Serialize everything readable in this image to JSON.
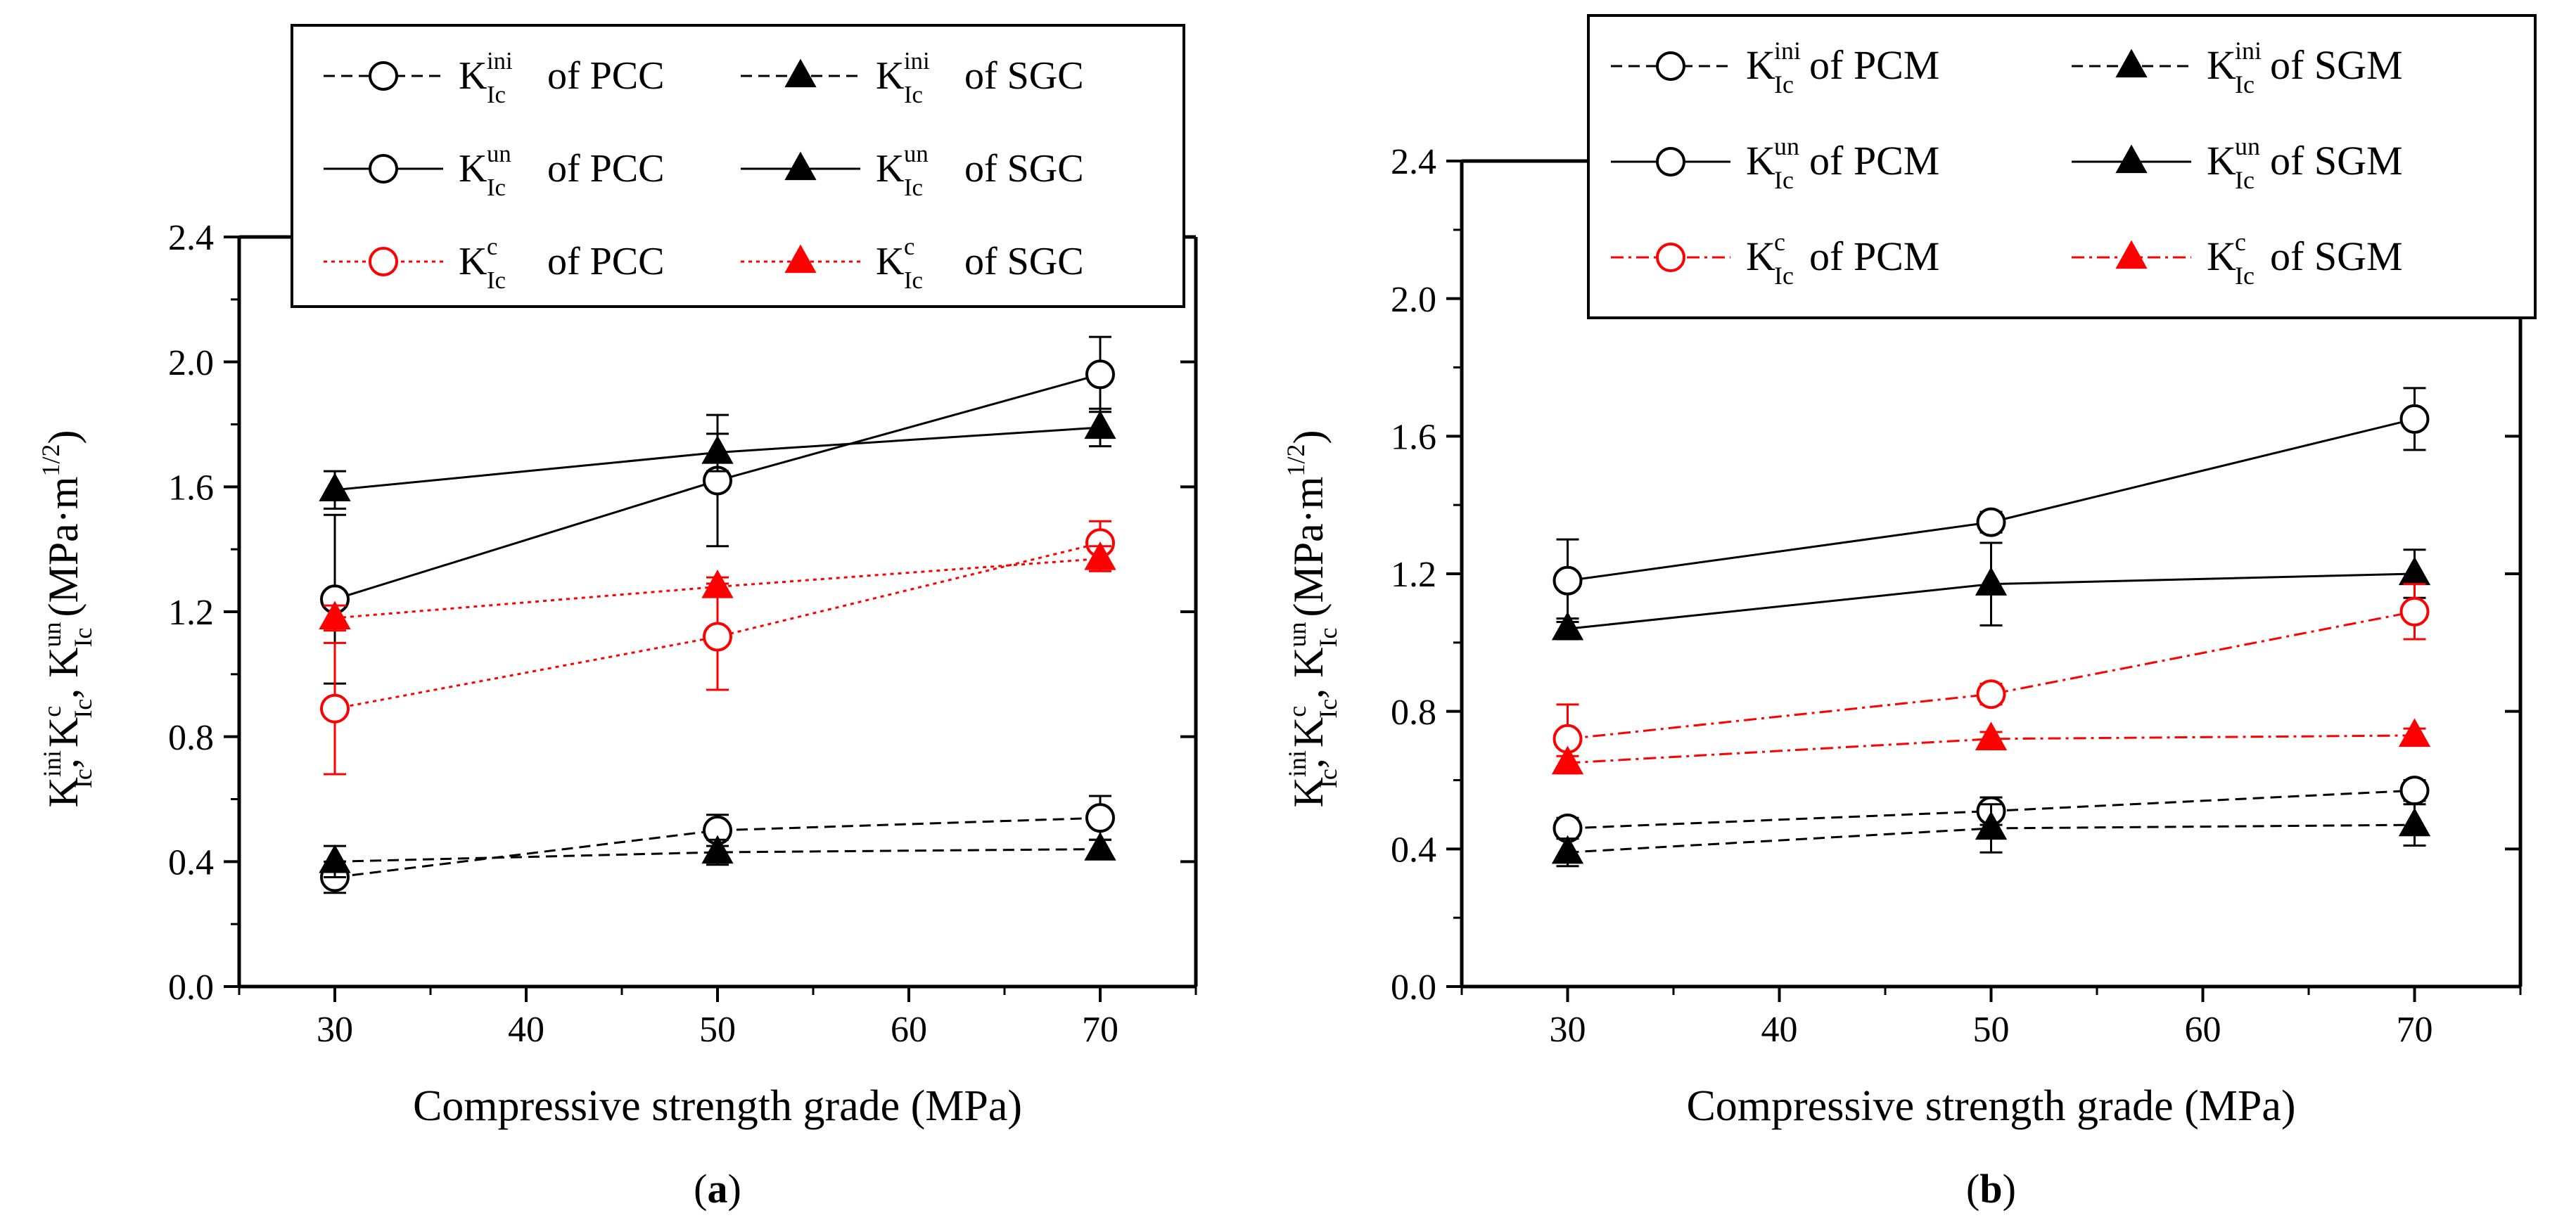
{
  "chart_data": [
    {
      "type": "line",
      "panel_label": "(a)",
      "panel_letter": "a",
      "xlabel": "Compressive strength grade (MPa)",
      "ylabel_main": "K",
      "ylabel_units": "(MPa·m",
      "ylabel_exp": "1/2",
      "ylabel_close": ")",
      "xlim": [
        25,
        75
      ],
      "ylim": [
        0.0,
        2.4
      ],
      "xticks": [
        30,
        40,
        50,
        60,
        70
      ],
      "yticks": [
        0.0,
        0.4,
        0.8,
        1.2,
        1.6,
        2.0,
        2.4
      ],
      "ytick_labels": [
        "0.0",
        "0.4",
        "0.8",
        "1.2",
        "1.6",
        "2.0",
        "2.4"
      ],
      "x": [
        30,
        50,
        70
      ],
      "series": [
        {
          "name": "K_Ic^ini of PCC",
          "base": "K",
          "sup": "ini",
          "sub": "Ic",
          "suffix": "of PCC",
          "marker": "open-circle",
          "line": "dash",
          "color": "#000000",
          "values": [
            0.35,
            0.5,
            0.54
          ],
          "errors": [
            0.05,
            0.05,
            0.07
          ]
        },
        {
          "name": "K_Ic^ini of SGC",
          "base": "K",
          "sup": "ini",
          "sub": "Ic",
          "suffix": "of SGC",
          "marker": "filled-triangle",
          "line": "dash",
          "color": "#000000",
          "values": [
            0.4,
            0.43,
            0.44
          ],
          "errors": [
            0.05,
            0.04,
            0.03
          ]
        },
        {
          "name": "K_Ic^un of PCC",
          "base": "K",
          "sup": "un",
          "sub": "Ic",
          "suffix": "of PCC",
          "marker": "open-circle",
          "line": "solid",
          "color": "#000000",
          "values": [
            1.24,
            1.62,
            1.96
          ],
          "errors": [
            0.27,
            0.21,
            0.12
          ]
        },
        {
          "name": "K_Ic^un of SGC",
          "base": "K",
          "sup": "un",
          "sub": "Ic",
          "suffix": "of SGC",
          "marker": "filled-triangle",
          "line": "solid",
          "color": "#000000",
          "values": [
            1.59,
            1.71,
            1.79
          ],
          "errors": [
            0.06,
            0.06,
            0.06
          ]
        },
        {
          "name": "K_Ic^c of PCC",
          "base": "K",
          "sup": "c",
          "sub": "Ic",
          "suffix": "of PCC",
          "marker": "open-circle",
          "line": "dot",
          "color": "#ff0000",
          "values": [
            0.89,
            1.12,
            1.42
          ],
          "errors": [
            0.21,
            0.17,
            0.07
          ]
        },
        {
          "name": "K_Ic^c of SGC",
          "base": "K",
          "sup": "c",
          "sub": "Ic",
          "suffix": "of SGC",
          "marker": "filled-triangle",
          "line": "dot",
          "color": "#ff0000",
          "values": [
            1.18,
            1.28,
            1.37
          ],
          "errors": [
            0.04,
            0.03,
            0.04
          ]
        }
      ],
      "legend_order": [
        0,
        1,
        2,
        3,
        4,
        5
      ],
      "legend_placement": "top, overlapping plot"
    },
    {
      "type": "line",
      "panel_label": "(b)",
      "panel_letter": "b",
      "xlabel": "Compressive strength grade (MPa)",
      "ylabel_main": "K",
      "ylabel_units": "(MPa·m",
      "ylabel_exp": "1/2",
      "ylabel_close": ")",
      "xlim": [
        25,
        75
      ],
      "ylim": [
        0.0,
        2.4
      ],
      "xticks": [
        30,
        40,
        50,
        60,
        70
      ],
      "yticks": [
        0.0,
        0.4,
        0.8,
        1.2,
        1.6,
        2.0,
        2.4
      ],
      "ytick_labels": [
        "0.0",
        "0.4",
        "0.8",
        "1.2",
        "1.6",
        "2.0",
        "2.4"
      ],
      "x": [
        30,
        50,
        70
      ],
      "series": [
        {
          "name": "K_Ic^ini of PCM",
          "base": "K",
          "sup": "ini",
          "sub": "Ic",
          "suffix": "of PCM",
          "marker": "open-circle",
          "line": "dash",
          "color": "#000000",
          "values": [
            0.46,
            0.51,
            0.57
          ],
          "errors": [
            0.03,
            0.04,
            0.03
          ]
        },
        {
          "name": "K_Ic^ini of SGM",
          "base": "K",
          "sup": "ini",
          "sub": "Ic",
          "suffix": "of SGM",
          "marker": "filled-triangle",
          "line": "dash",
          "color": "#000000",
          "values": [
            0.39,
            0.46,
            0.47
          ],
          "errors": [
            0.04,
            0.07,
            0.06
          ]
        },
        {
          "name": "K_Ic^un of PCM",
          "base": "K",
          "sup": "un",
          "sub": "Ic",
          "suffix": "of PCM",
          "marker": "open-circle",
          "line": "solid",
          "color": "#000000",
          "values": [
            1.18,
            1.35,
            1.65
          ],
          "errors": [
            0.12,
            0.03,
            0.09
          ]
        },
        {
          "name": "K_Ic^un of SGM",
          "base": "K",
          "sup": "un",
          "sub": "Ic",
          "suffix": "of SGM",
          "marker": "filled-triangle",
          "line": "solid",
          "color": "#000000",
          "values": [
            1.04,
            1.17,
            1.2
          ],
          "errors": [
            0.03,
            0.12,
            0.07
          ]
        },
        {
          "name": "K_Ic^c of PCM",
          "base": "K",
          "sup": "c",
          "sub": "Ic",
          "suffix": "of  PCM",
          "marker": "open-circle",
          "line": "dashdot",
          "color": "#ff0000",
          "values": [
            0.72,
            0.85,
            1.09
          ],
          "errors": [
            0.1,
            0.03,
            0.08
          ]
        },
        {
          "name": "K_Ic^c of SGM",
          "base": "K",
          "sup": "c",
          "sub": "Ic",
          "suffix": "of SGM",
          "marker": "filled-triangle",
          "line": "dashdot",
          "color": "#ff0000",
          "values": [
            0.65,
            0.72,
            0.73
          ],
          "errors": [
            0.02,
            0.02,
            0.02
          ]
        }
      ],
      "legend_order": [
        0,
        1,
        2,
        3,
        4,
        5
      ],
      "legend_placement": "top, overlapping plot"
    }
  ]
}
